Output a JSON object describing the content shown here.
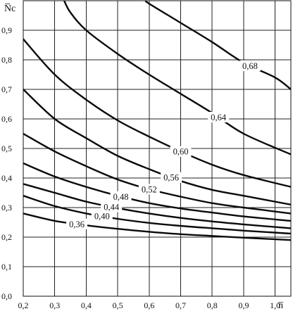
{
  "chart_data": {
    "type": "line",
    "title": "",
    "xlabel": "n̅",
    "ylabel": "N̅c",
    "xlim": [
      0.2,
      1.05
    ],
    "ylim": [
      0.0,
      1.0
    ],
    "grid": true,
    "x_ticks": [
      "0,2",
      "0,3",
      "0,4",
      "0,5",
      "0,6",
      "0,7",
      "0,8",
      "0,9",
      "1,0"
    ],
    "y_ticks": [
      "0,0",
      "0,1",
      "0,2",
      "0,3",
      "0,4",
      "0,5",
      "0,6",
      "0,7",
      "0,8",
      "0,9"
    ],
    "series": [
      {
        "name": "0,36",
        "points": [
          [
            0.2,
            0.28
          ],
          [
            0.3,
            0.255
          ],
          [
            0.4,
            0.24
          ],
          [
            0.5,
            0.228
          ],
          [
            0.6,
            0.218
          ],
          [
            0.7,
            0.21
          ],
          [
            0.8,
            0.204
          ],
          [
            0.9,
            0.198
          ],
          [
            1.05,
            0.19
          ]
        ],
        "label_at": 0.37
      },
      {
        "name": "0,40",
        "points": [
          [
            0.2,
            0.34
          ],
          [
            0.3,
            0.305
          ],
          [
            0.4,
            0.28
          ],
          [
            0.5,
            0.262
          ],
          [
            0.6,
            0.248
          ],
          [
            0.7,
            0.238
          ],
          [
            0.8,
            0.23
          ],
          [
            0.9,
            0.222
          ],
          [
            1.05,
            0.212
          ]
        ],
        "label_at": 0.45
      },
      {
        "name": "0,44",
        "points": [
          [
            0.2,
            0.38
          ],
          [
            0.3,
            0.35
          ],
          [
            0.4,
            0.32
          ],
          [
            0.5,
            0.298
          ],
          [
            0.6,
            0.28
          ],
          [
            0.7,
            0.265
          ],
          [
            0.8,
            0.253
          ],
          [
            0.9,
            0.243
          ],
          [
            1.05,
            0.23
          ]
        ],
        "label_at": 0.48
      },
      {
        "name": "0,48",
        "points": [
          [
            0.2,
            0.45
          ],
          [
            0.3,
            0.405
          ],
          [
            0.4,
            0.37
          ],
          [
            0.5,
            0.34
          ],
          [
            0.6,
            0.315
          ],
          [
            0.7,
            0.297
          ],
          [
            0.8,
            0.283
          ],
          [
            0.9,
            0.27
          ],
          [
            1.05,
            0.255
          ]
        ],
        "label_at": 0.51
      },
      {
        "name": "0,52",
        "points": [
          [
            0.2,
            0.55
          ],
          [
            0.3,
            0.49
          ],
          [
            0.4,
            0.44
          ],
          [
            0.5,
            0.395
          ],
          [
            0.6,
            0.362
          ],
          [
            0.7,
            0.337
          ],
          [
            0.8,
            0.315
          ],
          [
            0.9,
            0.3
          ],
          [
            1.05,
            0.28
          ]
        ],
        "label_at": 0.6
      },
      {
        "name": "0,56",
        "points": [
          [
            0.2,
            0.7
          ],
          [
            0.3,
            0.6
          ],
          [
            0.4,
            0.535
          ],
          [
            0.5,
            0.475
          ],
          [
            0.6,
            0.43
          ],
          [
            0.7,
            0.39
          ],
          [
            0.8,
            0.36
          ],
          [
            0.9,
            0.34
          ],
          [
            1.05,
            0.31
          ]
        ],
        "label_at": 0.67
      },
      {
        "name": "0,60",
        "points": [
          [
            0.2,
            0.87
          ],
          [
            0.3,
            0.75
          ],
          [
            0.4,
            0.665
          ],
          [
            0.5,
            0.595
          ],
          [
            0.6,
            0.54
          ],
          [
            0.7,
            0.49
          ],
          [
            0.8,
            0.445
          ],
          [
            0.9,
            0.41
          ],
          [
            1.05,
            0.37
          ]
        ],
        "label_at": 0.7
      },
      {
        "name": "0,64",
        "points": [
          [
            0.33,
            1.0
          ],
          [
            0.35,
            0.96
          ],
          [
            0.4,
            0.9
          ],
          [
            0.5,
            0.82
          ],
          [
            0.6,
            0.75
          ],
          [
            0.7,
            0.685
          ],
          [
            0.8,
            0.62
          ],
          [
            0.9,
            0.55
          ],
          [
            1.05,
            0.48
          ]
        ],
        "label_at": 0.82
      },
      {
        "name": "0,68",
        "points": [
          [
            0.59,
            1.0
          ],
          [
            0.6,
            0.99
          ],
          [
            0.7,
            0.925
          ],
          [
            0.8,
            0.86
          ],
          [
            0.9,
            0.79
          ],
          [
            1.0,
            0.74
          ],
          [
            1.05,
            0.7
          ]
        ],
        "label_at": 0.92
      }
    ]
  }
}
